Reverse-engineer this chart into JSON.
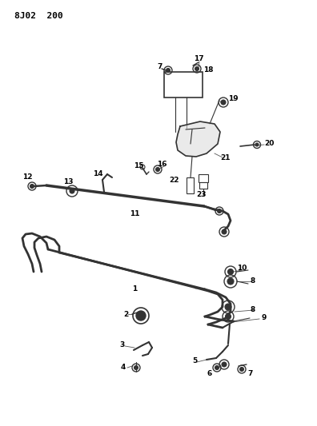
{
  "title": "8J02  200",
  "background_color": "#ffffff",
  "line_color": "#333333",
  "label_color": "#000000",
  "fig_width": 3.96,
  "fig_height": 5.33,
  "dpi": 100
}
